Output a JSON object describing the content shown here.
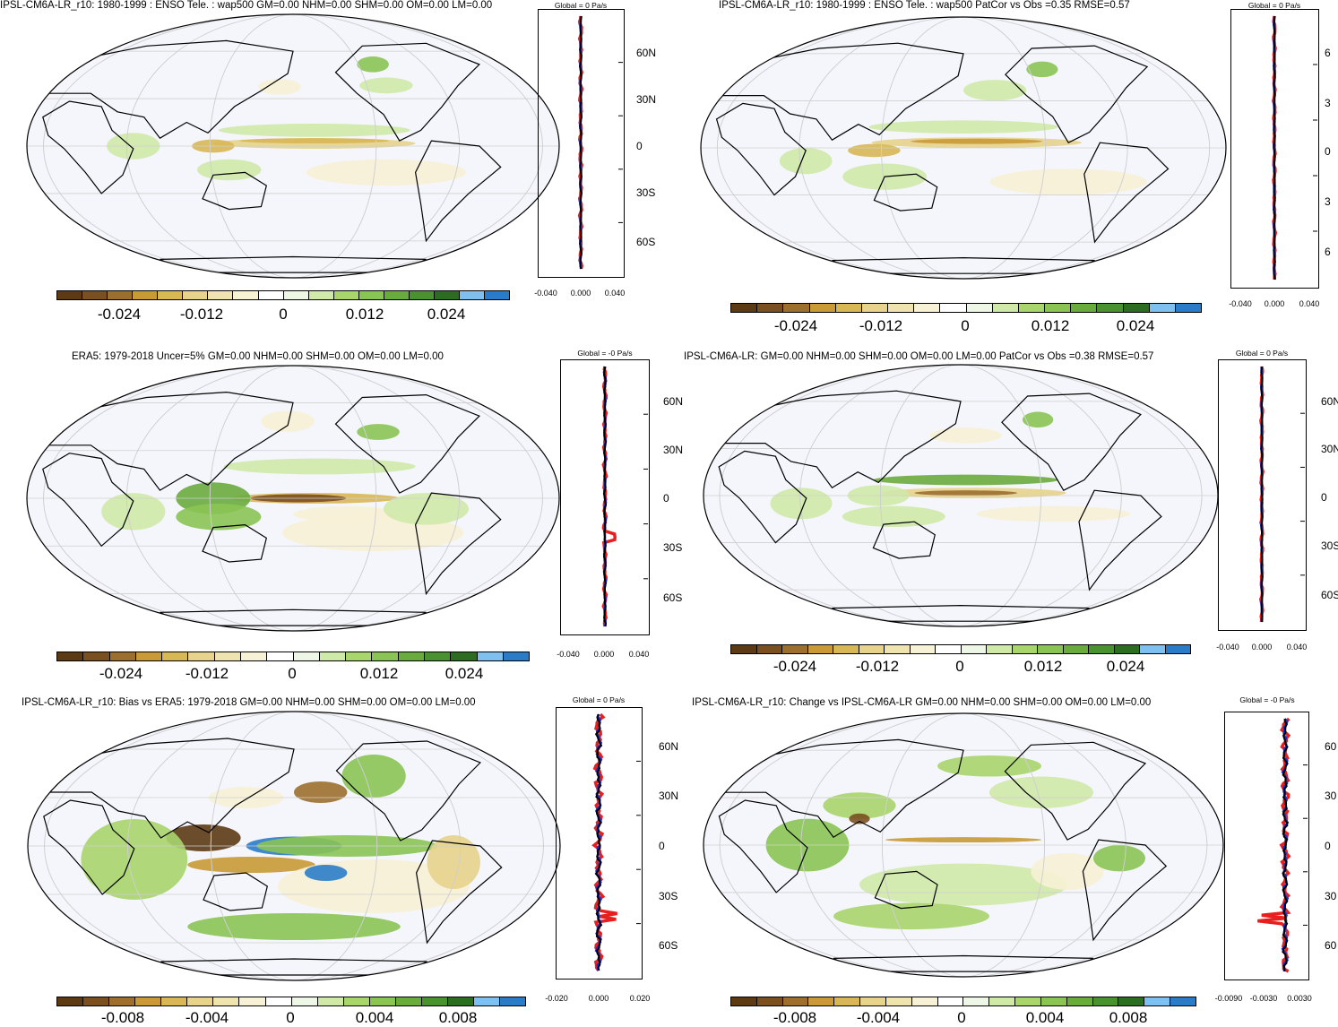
{
  "colors": {
    "scale": [
      "#5c3a14",
      "#7a5020",
      "#9c6f2e",
      "#c99a36",
      "#d8b755",
      "#e7d38c",
      "#efe4b0",
      "#f7f1d6",
      "#ffffff",
      "#eef7e6",
      "#cfe9a8",
      "#a9d56d",
      "#8ac454",
      "#6aab3e",
      "#4a9230",
      "#2d6d21",
      "#7ec0f0",
      "#2a7cc8"
    ],
    "ocean": "#f4f6fb",
    "land": "#000000",
    "obs_line": "#e81f1f",
    "model_line": "#1030d0",
    "mmm_line": "#000000"
  },
  "panels": [
    {
      "title": "IPSL-CM6A-LR_r10: 1980-1999 : ENSO Tele. : wap500 GM=0.00 NHM=0.00 SHM=0.00 OM=0.00 LM=0.00",
      "colorbar_labels": [
        "-0.024",
        "-0.012",
        "0",
        "0.012",
        "0.024"
      ],
      "profile_title": "Global = 0 Pa/s",
      "lat_labels": [
        "60N",
        "30N",
        "0",
        "30S",
        "60S"
      ],
      "x_ticks": [
        "-0.040",
        "0.000",
        "0.040"
      ]
    },
    {
      "title": "IPSL-CM6A-LR_r10: 1980-1999 : ENSO Tele. : wap500 PatCor vs Obs =0.35 RMSE=0.57",
      "colorbar_labels": [
        "-0.024",
        "-0.012",
        "0",
        "0.012",
        "0.024"
      ],
      "profile_title": "Global = 0 Pa/s",
      "lat_labels": [
        "6",
        "3",
        "0",
        "3",
        "6"
      ],
      "x_ticks": [
        "-0.040",
        "0.000",
        "0.040"
      ]
    },
    {
      "title": "ERA5: 1979-2018 Uncer=5% GM=0.00 NHM=0.00 SHM=0.00 OM=0.00 LM=0.00",
      "colorbar_labels": [
        "-0.024",
        "-0.012",
        "0",
        "0.012",
        "0.024"
      ],
      "profile_title": "Global = -0 Pa/s",
      "lat_labels": [
        "60N",
        "30N",
        "0",
        "30S",
        "60S"
      ],
      "x_ticks": [
        "-0.040",
        "0.000",
        "0.040"
      ]
    },
    {
      "title": "IPSL-CM6A-LR: GM=0.00 NHM=0.00 SHM=0.00 OM=0.00 LM=0.00 PatCor vs Obs =0.38 RMSE=0.57",
      "colorbar_labels": [
        "-0.024",
        "-0.012",
        "0",
        "0.012",
        "0.024"
      ],
      "profile_title": "Global = 0 Pa/s",
      "lat_labels": [
        "60N",
        "30N",
        "0",
        "30S",
        "60S"
      ],
      "x_ticks": [
        "-0.040",
        "0.000",
        "0.040"
      ]
    },
    {
      "title": "IPSL-CM6A-LR_r10: Bias vs ERA5: 1979-2018 GM=0.00 NHM=0.00 SHM=0.00 OM=0.00 LM=0.00",
      "colorbar_labels": [
        "-0.008",
        "-0.004",
        "0",
        "0.004",
        "0.008"
      ],
      "profile_title": "Global = 0 Pa/s",
      "lat_labels": [
        "60N",
        "30N",
        "0",
        "30S",
        "60S"
      ],
      "x_ticks": [
        "-0.020",
        "0.000",
        "0.020"
      ]
    },
    {
      "title": "IPSL-CM6A-LR_r10: Change vs IPSL-CM6A-LR GM=0.00 NHM=0.00 SHM=0.00 OM=0.00 LM=0.00",
      "colorbar_labels": [
        "-0.008",
        "-0.004",
        "0",
        "0.004",
        "0.008"
      ],
      "profile_title": "Global = -0 Pa/s",
      "lat_labels": [
        "60",
        "30",
        "0",
        "30",
        "60"
      ],
      "x_ticks": [
        "-0.0090",
        "-0.0030",
        "0.0030"
      ]
    }
  ]
}
